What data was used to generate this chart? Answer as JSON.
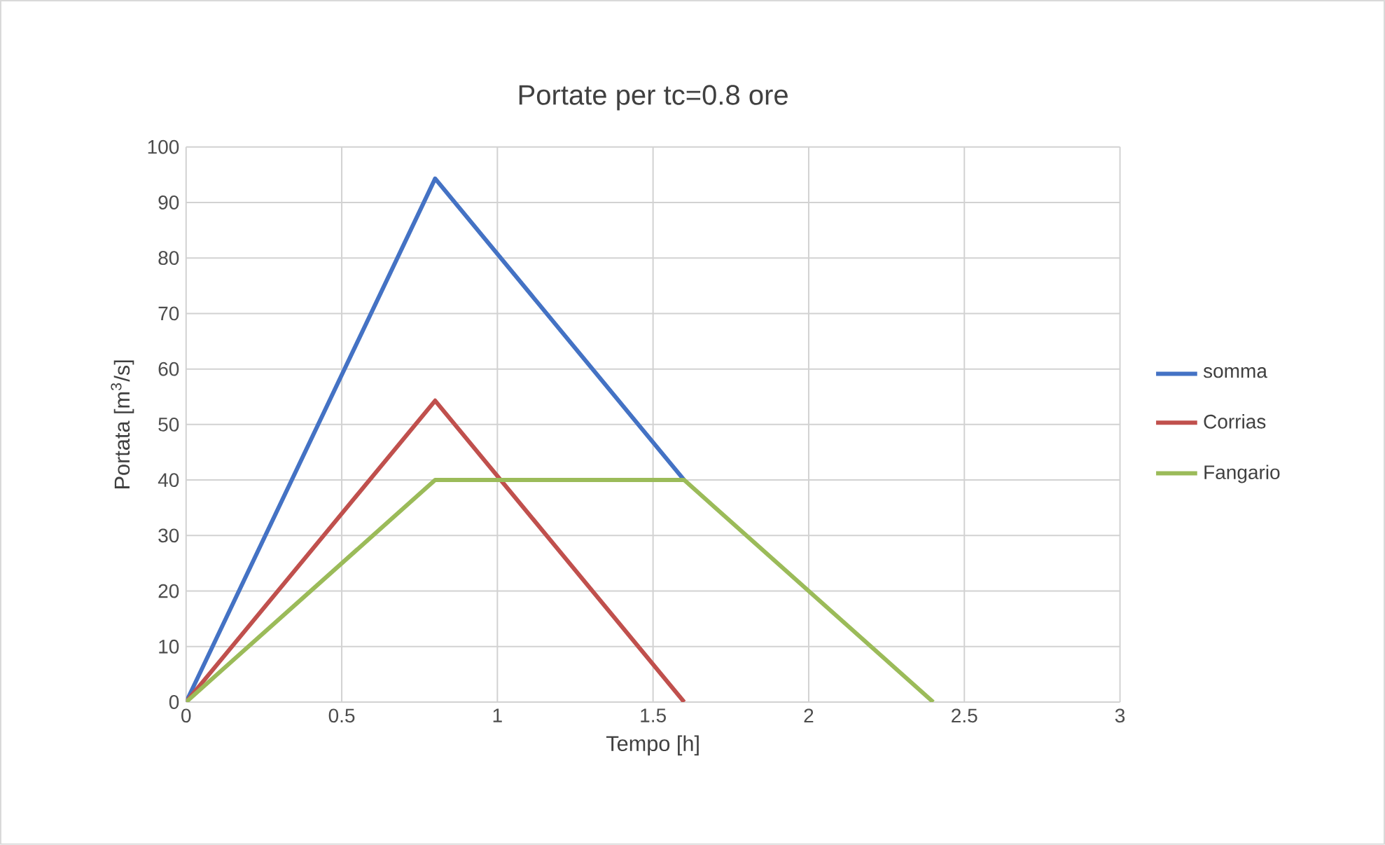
{
  "chart_data": {
    "type": "line",
    "title": "Portate per tc=0.8 ore",
    "xlabel": "Tempo [h]",
    "ylabel": "Portata [m$^{3}$/s]",
    "series": [
      {
        "name": "somma",
        "color": "#4472c4",
        "x": [
          0,
          0.8,
          1.6
        ],
        "values": [
          0,
          94.3,
          40
        ]
      },
      {
        "name": "Corrias",
        "color": "#c0504d",
        "x": [
          0,
          0.8,
          1.6
        ],
        "values": [
          0,
          54.3,
          0
        ]
      },
      {
        "name": "Fangario",
        "color": "#9bbb59",
        "x": [
          0,
          0.8,
          1.6,
          2.4
        ],
        "values": [
          0,
          40,
          40,
          0
        ]
      }
    ],
    "xlim": [
      0,
      3
    ],
    "ylim": [
      0,
      100
    ],
    "xticks": [
      0,
      0.5,
      1,
      1.5,
      2,
      2.5,
      3
    ],
    "yticks": [
      0,
      10,
      20,
      30,
      40,
      50,
      60,
      70,
      80,
      90,
      100
    ],
    "grid": true,
    "legend": "right",
    "marker": "none",
    "line_style": "solid"
  }
}
